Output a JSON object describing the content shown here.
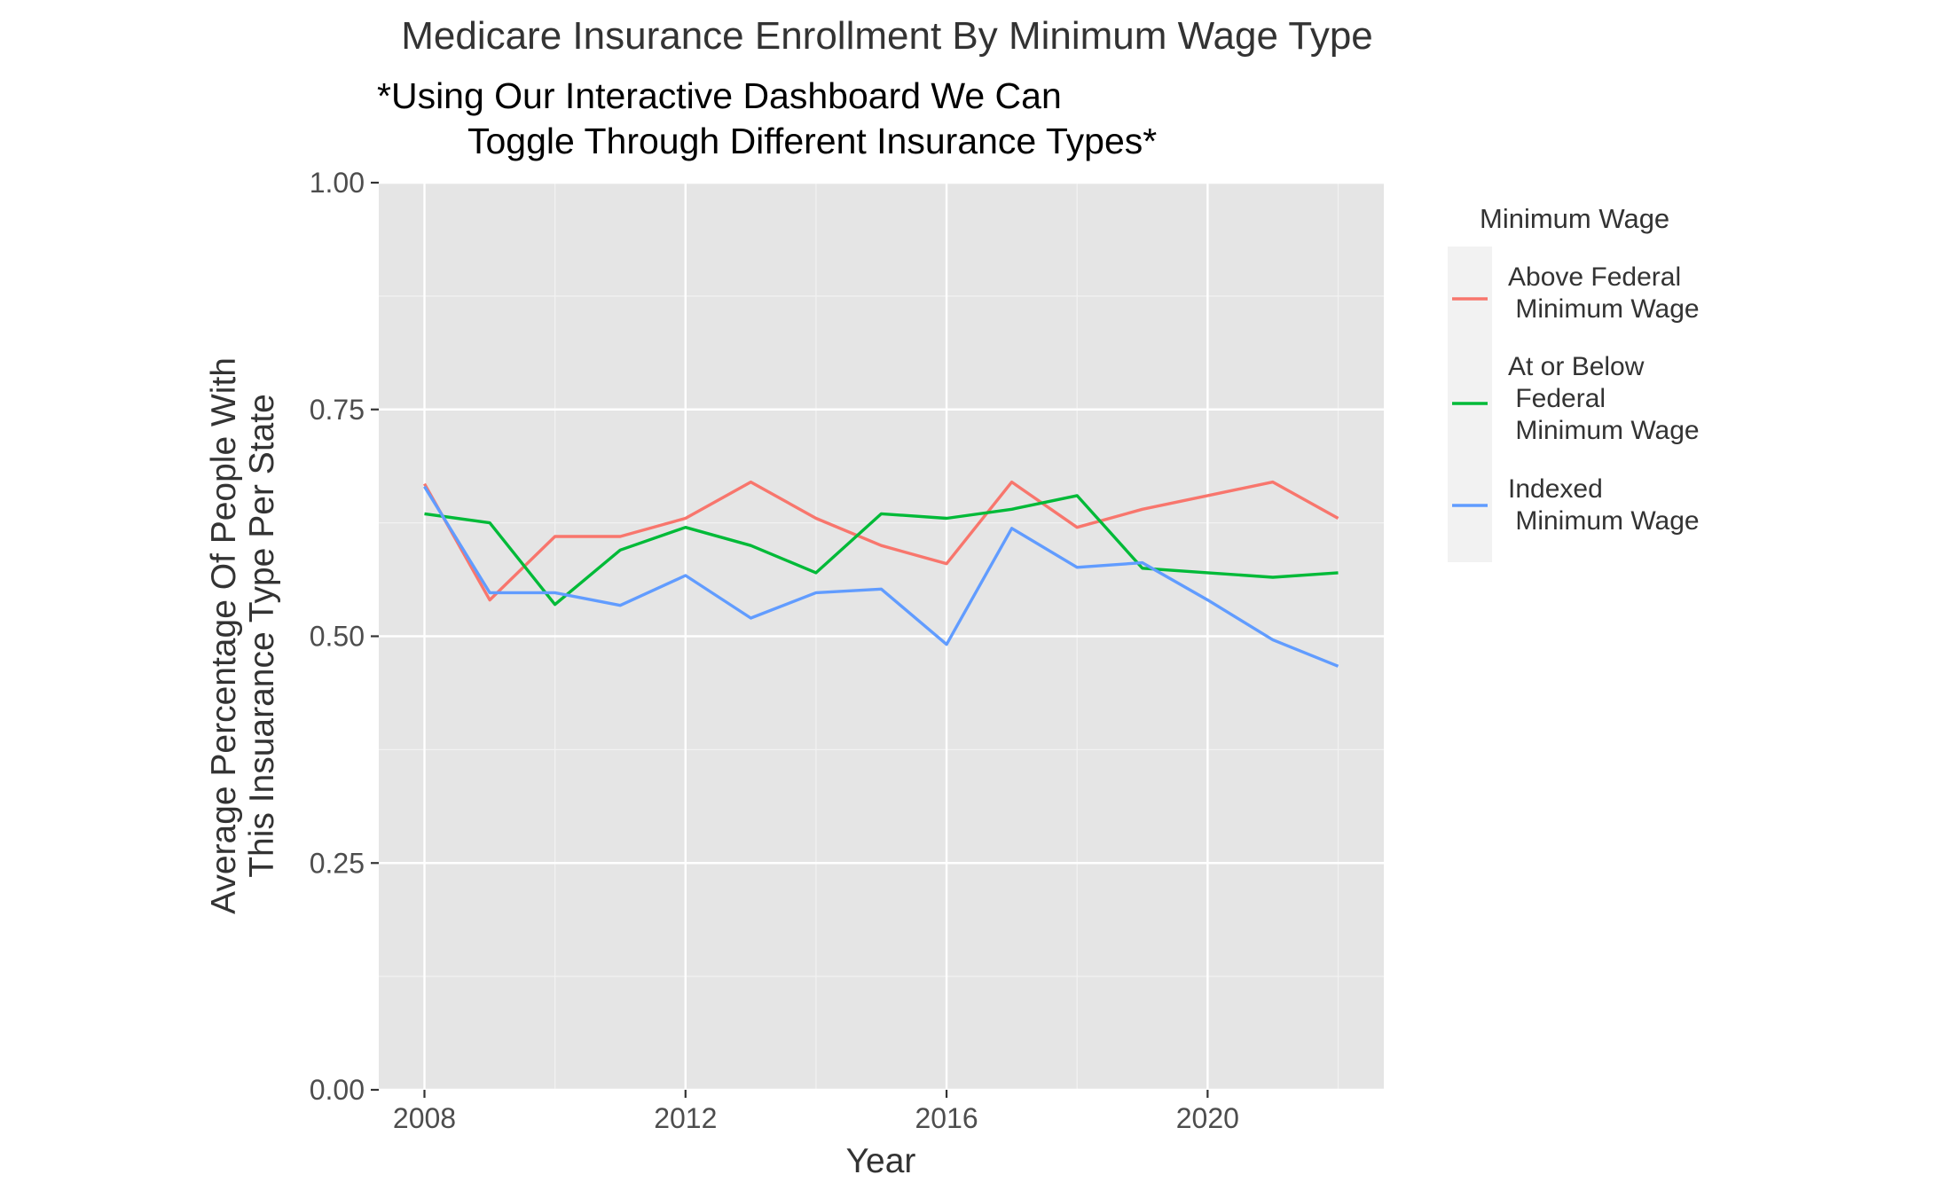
{
  "chart_data": {
    "type": "line",
    "title": "Medicare Insurance Enrollment By Minimum Wage Type",
    "subtitle_lines": [
      "*Using Our Interactive Dashboard We Can",
      "Toggle Through Different Insurance Types*"
    ],
    "xlabel": "Year",
    "ylabel_lines": [
      "Average Percentage Of People With",
      "This Insuarance Type Per State"
    ],
    "xlim": [
      2007.3,
      2022.7
    ],
    "ylim": [
      0,
      1
    ],
    "x_ticks": [
      2008,
      2012,
      2016,
      2020
    ],
    "x_tick_labels": [
      "2008",
      "2012",
      "2016",
      "2020"
    ],
    "y_ticks": [
      0,
      0.25,
      0.5,
      0.75,
      1
    ],
    "y_tick_labels": [
      "0.00",
      "0.25",
      "0.50",
      "0.75",
      "1.00"
    ],
    "grid": true,
    "legend_position": "right",
    "legend_title": "Minimum Wage",
    "x": [
      2008,
      2009,
      2010,
      2011,
      2012,
      2013,
      2014,
      2015,
      2016,
      2017,
      2018,
      2019,
      2020,
      2021,
      2022
    ],
    "series": [
      {
        "name_lines": [
          "Above Federal",
          " Minimum Wage"
        ],
        "color": "#F8766D",
        "values": [
          0.668,
          0.54,
          0.61,
          0.61,
          0.63,
          0.67,
          0.63,
          0.6,
          0.58,
          0.67,
          0.62,
          0.64,
          0.655,
          0.67,
          0.63
        ]
      },
      {
        "name_lines": [
          "At or Below",
          " Federal",
          " Minimum Wage"
        ],
        "color": "#00BA38",
        "values": [
          0.635,
          0.625,
          0.535,
          0.595,
          0.62,
          0.6,
          0.57,
          0.635,
          0.63,
          0.64,
          0.655,
          0.575,
          0.57,
          0.565,
          0.57
        ]
      },
      {
        "name_lines": [
          "Indexed",
          " Minimum Wage"
        ],
        "color": "#619CFF",
        "values": [
          0.665,
          0.548,
          0.548,
          0.534,
          0.567,
          0.52,
          0.548,
          0.552,
          0.491,
          0.619,
          0.576,
          0.581,
          0.54,
          0.496,
          0.467
        ]
      }
    ]
  }
}
